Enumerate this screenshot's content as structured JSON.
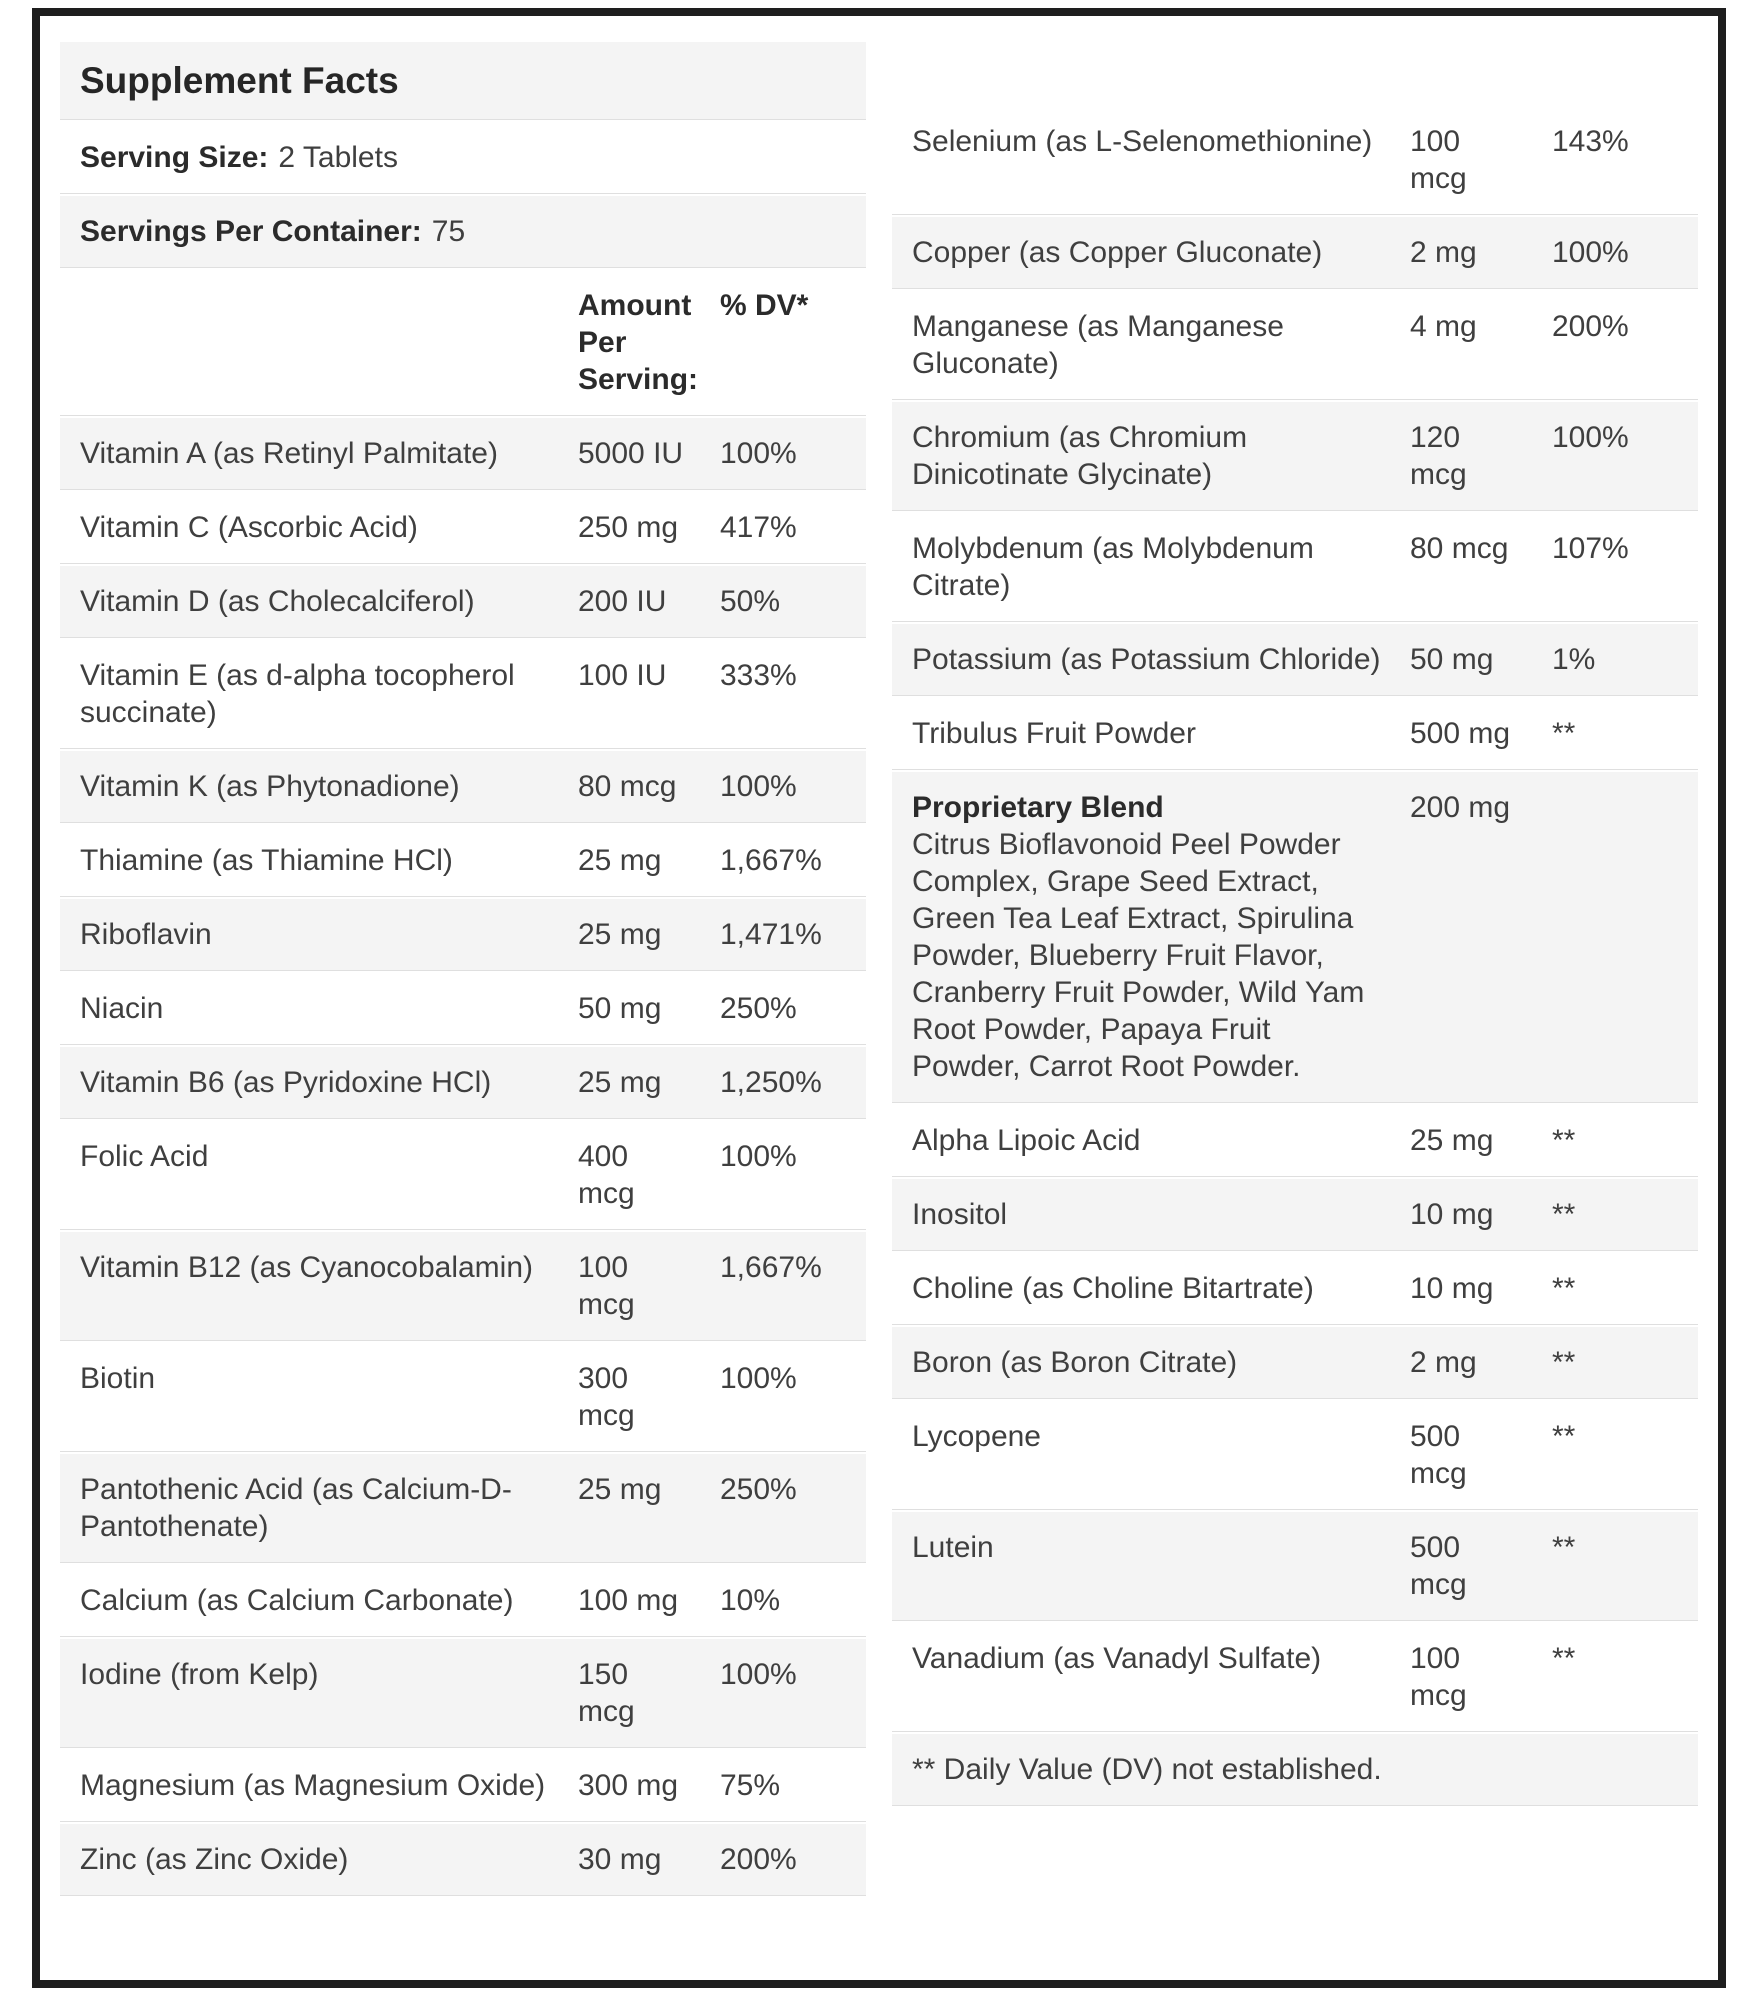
{
  "label": {
    "title": "Supplement Facts",
    "serving_size_label": "Serving Size:",
    "serving_size_value": "2 Tablets",
    "servings_per_container_label": "Servings Per Container:",
    "servings_per_container_value": "75",
    "col_amount_header": "Amount Per Serving:",
    "col_dv_header": "% DV*",
    "footnote": "** Daily Value (DV) not established."
  },
  "colors": {
    "frame_border": "#1e1e1e",
    "row_shade": "#f4f4f4",
    "divider": "#dfdfdf",
    "text": "#3f3f3f"
  },
  "left_table": {
    "stripe_offset": 0,
    "rows": [
      {
        "name": "Vitamin A (as Retinyl Palmitate)",
        "amount": "5000 IU",
        "dv": "100%"
      },
      {
        "name": "Vitamin C (Ascorbic Acid)",
        "amount": "250 mg",
        "dv": "417%"
      },
      {
        "name": "Vitamin D (as Cholecalciferol)",
        "amount": "200 IU",
        "dv": "50%"
      },
      {
        "name": "Vitamin E (as d-alpha tocopherol succinate)",
        "amount": "100 IU",
        "dv": "333%"
      },
      {
        "name": "Vitamin K (as Phytonadione)",
        "amount": "80 mcg",
        "dv": "100%"
      },
      {
        "name": "Thiamine (as Thiamine HCl)",
        "amount": "25 mg",
        "dv": "1,667%"
      },
      {
        "name": "Riboflavin",
        "amount": "25 mg",
        "dv": "1,471%"
      },
      {
        "name": "Niacin",
        "amount": "50 mg",
        "dv": "250%"
      },
      {
        "name": "Vitamin B6 (as Pyridoxine HCl)",
        "amount": "25 mg",
        "dv": "1,250%"
      },
      {
        "name": "Folic Acid",
        "amount": "400 mcg",
        "dv": "100%"
      },
      {
        "name": "Vitamin B12 (as Cyanocobalamin)",
        "amount": "100 mcg",
        "dv": "1,667%"
      },
      {
        "name": "Biotin",
        "amount": "300 mcg",
        "dv": "100%"
      },
      {
        "name": "Pantothenic Acid (as Calcium-D-Pantothenate)",
        "amount": "25 mg",
        "dv": "250%"
      },
      {
        "name": "Calcium (as Calcium Carbonate)",
        "amount": "100 mg",
        "dv": "10%"
      },
      {
        "name": "Iodine (from Kelp)",
        "amount": "150 mcg",
        "dv": "100%"
      },
      {
        "name": "Magnesium (as Magnesium Oxide)",
        "amount": "300 mg",
        "dv": "75%"
      },
      {
        "name": "Zinc (as Zinc Oxide)",
        "amount": "30 mg",
        "dv": "200%"
      }
    ]
  },
  "right_table": {
    "stripe_offset": 1,
    "rows": [
      {
        "name": "Selenium (as L-Selenomethionine)",
        "amount": "100 mcg",
        "dv": "143%"
      },
      {
        "name": "Copper (as Copper Gluconate)",
        "amount": "2 mg",
        "dv": "100%"
      },
      {
        "name": "Manganese (as Manganese Gluconate)",
        "amount": "4 mg",
        "dv": "200%"
      },
      {
        "name": "Chromium (as Chromium Dinicotinate Glycinate)",
        "amount": "120 mcg",
        "dv": "100%"
      },
      {
        "name": "Molybdenum (as Molybdenum Citrate)",
        "amount": "80 mcg",
        "dv": "107%"
      },
      {
        "name": "Potassium (as Potassium Chloride)",
        "amount": "50 mg",
        "dv": "1%"
      },
      {
        "name": "Tribulus Fruit Powder",
        "amount": "500 mg",
        "dv": "**"
      },
      {
        "name": "Proprietary Blend",
        "bold_name": true,
        "description": "Citrus Bioflavonoid Peel Powder Complex, Grape Seed Extract, Green Tea Leaf Extract, Spirulina Powder, Blueberry Fruit Flavor, Cranberry Fruit Powder, Wild Yam Root Powder, Papaya Fruit Powder, Carrot Root Powder.",
        "amount": "200 mg",
        "dv": ""
      },
      {
        "name": "Alpha Lipoic Acid",
        "amount": "25 mg",
        "dv": "**"
      },
      {
        "name": "Inositol",
        "amount": "10 mg",
        "dv": "**"
      },
      {
        "name": "Choline (as Choline Bitartrate)",
        "amount": "10 mg",
        "dv": "**"
      },
      {
        "name": "Boron (as Boron Citrate)",
        "amount": "2 mg",
        "dv": "**"
      },
      {
        "name": "Lycopene",
        "amount": "500 mcg",
        "dv": "**"
      },
      {
        "name": "Lutein",
        "amount": "500 mcg",
        "dv": "**"
      },
      {
        "name": "Vanadium (as Vanadyl Sulfate)",
        "amount": "100 mcg",
        "dv": "**"
      },
      {
        "type": "note"
      }
    ]
  }
}
